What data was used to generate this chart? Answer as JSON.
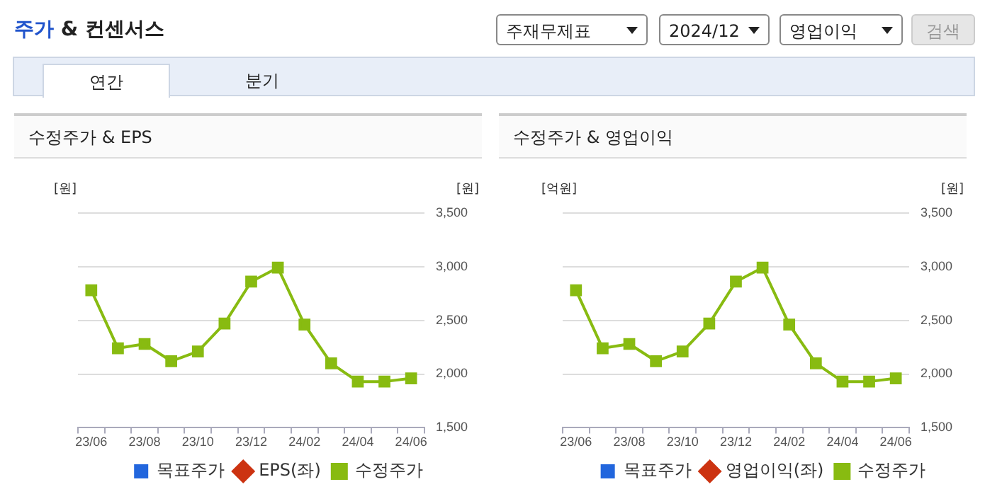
{
  "chart_data": [
    {
      "type": "line",
      "title": "수정주가 & EPS",
      "ylabel": "[원]",
      "y2label": "[원]",
      "annotations": [
        "주가 & 컨센서스",
        "주재무제표",
        "2024/12",
        "영업이익",
        "검색",
        "연간",
        "분기"
      ],
      "categories": [
        "23/06",
        null,
        "23/08",
        null,
        "23/10",
        null,
        "23/12",
        null,
        "24/02",
        null,
        "24/04",
        null,
        "24/06"
      ],
      "series": [
        {
          "name": "목표주가",
          "type": "bar",
          "color": "#2266dd",
          "values": [
            null,
            null,
            null,
            null,
            null,
            null,
            null,
            null,
            null,
            null,
            null,
            null,
            null
          ]
        },
        {
          "name": "EPS(좌)",
          "marker": "diamond",
          "color": "#cc3311",
          "values": [
            null,
            null,
            null,
            null,
            null,
            null,
            null,
            null,
            null,
            null,
            null,
            null,
            null
          ]
        },
        {
          "name": "수정주가",
          "marker": "square",
          "axis": "y2",
          "color": "#88bb11",
          "values": [
            2780,
            2240,
            2280,
            2120,
            2210,
            2470,
            2860,
            2990,
            2460,
            2100,
            1930,
            1930,
            1960
          ]
        }
      ],
      "y2lim": [
        1500,
        3500
      ],
      "y2ticks": [
        {
          "value": 1500,
          "label": "1,500"
        },
        {
          "value": 2000,
          "label": "2,000"
        },
        {
          "value": 2500,
          "label": "2,500"
        },
        {
          "value": 3000,
          "label": "3,000"
        },
        {
          "value": 3500,
          "label": "3,500"
        }
      ],
      "grid": "y",
      "legend": "bottom"
    },
    {
      "type": "line",
      "title": "수정주가 & 영업이익",
      "ylabel": "[억원]",
      "y2label": "[원]",
      "categories": [
        "23/06",
        null,
        "23/08",
        null,
        "23/10",
        null,
        "23/12",
        null,
        "24/02",
        null,
        "24/04",
        null,
        "24/06"
      ],
      "series": [
        {
          "name": "목표주가",
          "type": "bar",
          "color": "#2266dd",
          "values": [
            null,
            null,
            null,
            null,
            null,
            null,
            null,
            null,
            null,
            null,
            null,
            null,
            null
          ]
        },
        {
          "name": "영업이익(좌)",
          "marker": "diamond",
          "color": "#cc3311",
          "values": [
            null,
            null,
            null,
            null,
            null,
            null,
            null,
            null,
            null,
            null,
            null,
            null,
            null
          ]
        },
        {
          "name": "수정주가",
          "marker": "square",
          "axis": "y2",
          "color": "#88bb11",
          "values": [
            2780,
            2240,
            2280,
            2120,
            2210,
            2470,
            2860,
            2990,
            2460,
            2100,
            1930,
            1930,
            1960
          ]
        }
      ],
      "y2lim": [
        1500,
        3500
      ],
      "y2ticks": [
        {
          "value": 1500,
          "label": "1,500"
        },
        {
          "value": 2000,
          "label": "2,000"
        },
        {
          "value": 2500,
          "label": "2,500"
        },
        {
          "value": 3000,
          "label": "3,000"
        },
        {
          "value": 3500,
          "label": "3,500"
        }
      ],
      "grid": "y",
      "legend": "bottom"
    }
  ]
}
